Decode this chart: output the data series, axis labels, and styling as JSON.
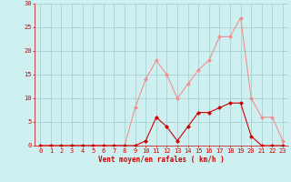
{
  "x": [
    0,
    1,
    2,
    3,
    4,
    5,
    6,
    7,
    8,
    9,
    10,
    11,
    12,
    13,
    14,
    15,
    16,
    17,
    18,
    19,
    20,
    21,
    22,
    23
  ],
  "rafales": [
    0,
    0,
    0,
    0,
    0,
    0,
    0,
    0,
    0,
    8,
    14,
    18,
    15,
    10,
    13,
    16,
    18,
    23,
    23,
    27,
    10,
    6,
    6,
    1
  ],
  "vent_moyen": [
    0,
    0,
    0,
    0,
    0,
    0,
    0,
    0,
    0,
    0,
    1,
    6,
    4,
    1,
    4,
    7,
    7,
    8,
    9,
    9,
    2,
    0,
    0,
    0
  ],
  "color_rafales": "#f09090",
  "color_moyen": "#cc0000",
  "bg_color": "#cff0f0",
  "grid_color": "#a8d0d0",
  "xlabel": "Vent moyen/en rafales ( km/h )",
  "ylabel_ticks": [
    0,
    5,
    10,
    15,
    20,
    25,
    30
  ],
  "xlim": [
    -0.5,
    23.5
  ],
  "ylim": [
    0,
    30
  ],
  "xlabel_color": "#cc0000",
  "tick_color": "#cc0000",
  "axis_label_fontsize": 5.5,
  "tick_fontsize": 5.0
}
